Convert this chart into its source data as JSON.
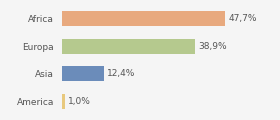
{
  "categories": [
    "Africa",
    "Europa",
    "Asia",
    "America"
  ],
  "values": [
    47.7,
    38.9,
    12.4,
    1.0
  ],
  "labels": [
    "47,7%",
    "38,9%",
    "12,4%",
    "1,0%"
  ],
  "bar_colors": [
    "#e8a97e",
    "#b5c98e",
    "#6b8cba",
    "#e8c97e"
  ],
  "background_color": "#f5f5f5",
  "xlim": [
    0,
    62
  ],
  "label_fontsize": 6.5,
  "tick_fontsize": 6.5,
  "bar_height": 0.55
}
